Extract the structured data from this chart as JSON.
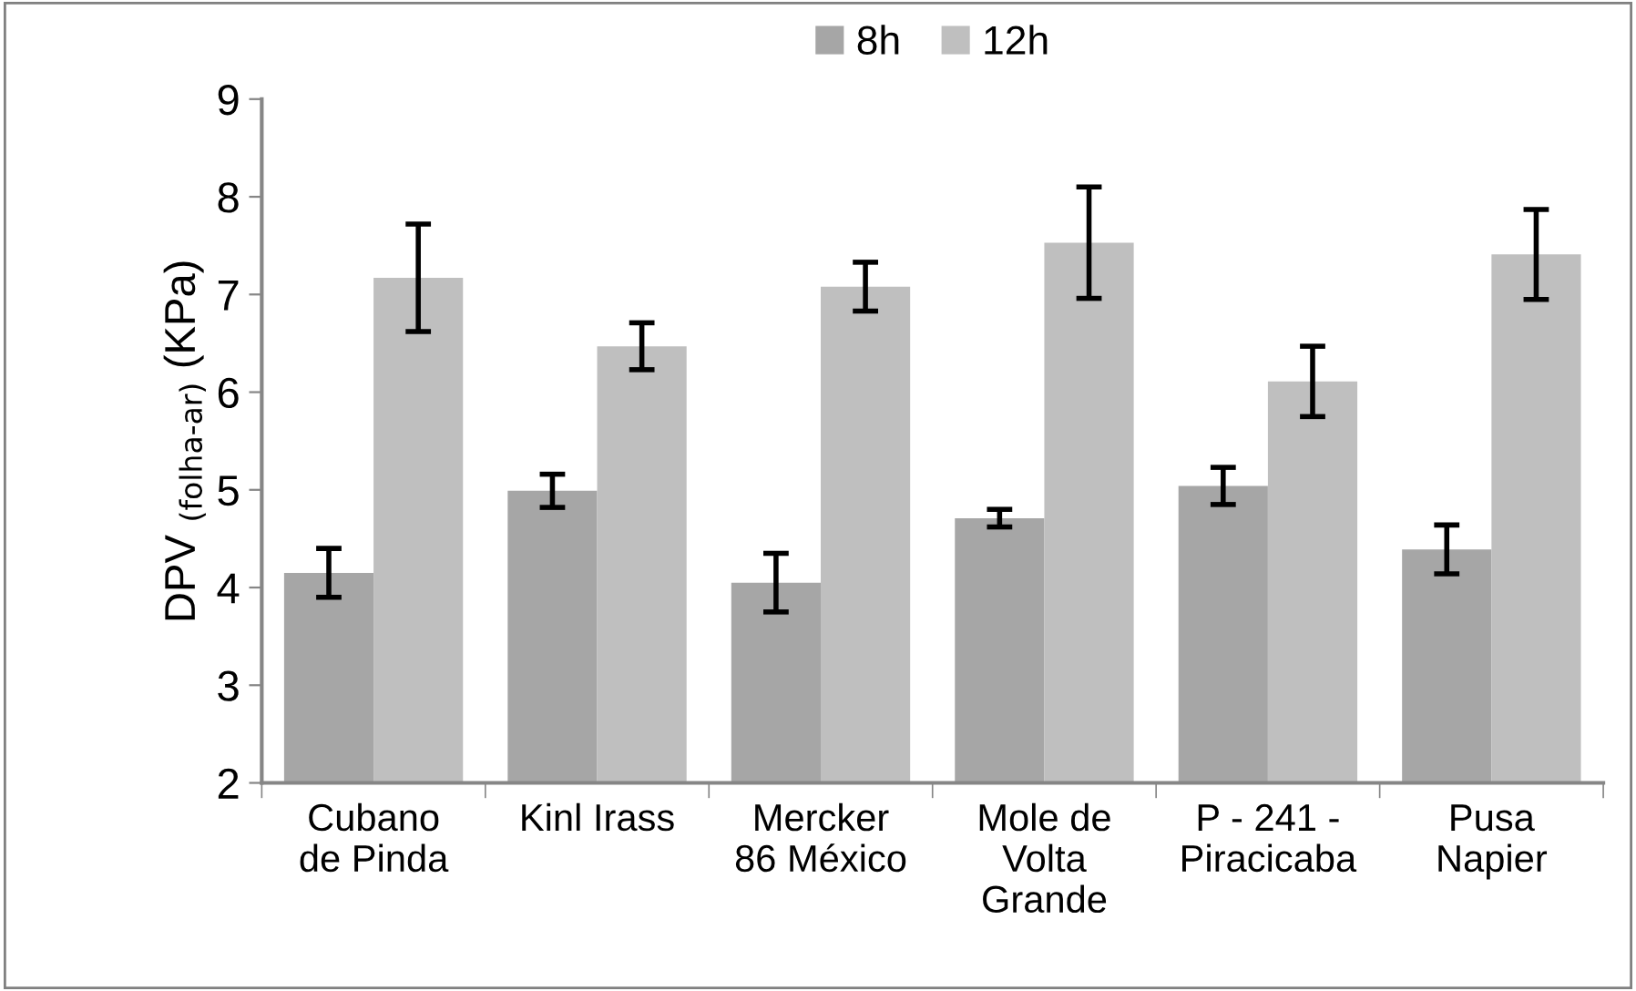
{
  "chart_data": {
    "type": "bar",
    "ylabel": "DPV $_{(folha-ar)}$ (KPa)",
    "categories": [
      "Cubano\nde Pinda",
      "Kinl Irass",
      "Mercker\n86 México",
      "Mole de\nVolta\nGrande",
      "P - 241 -\nPiracicaba",
      "Pusa\nNapier"
    ],
    "series": [
      {
        "name": "8h",
        "color": "#a6a6a6",
        "values": [
          4.15,
          4.99,
          4.05,
          4.71,
          5.04,
          4.39
        ],
        "errors": [
          0.25,
          0.17,
          0.3,
          0.09,
          0.19,
          0.25
        ]
      },
      {
        "name": "12h",
        "color": "#bfbfbf",
        "values": [
          7.17,
          6.47,
          7.08,
          7.53,
          6.11,
          7.41
        ],
        "errors": [
          0.55,
          0.24,
          0.25,
          0.57,
          0.36,
          0.46
        ]
      }
    ],
    "ylim": [
      2,
      9
    ],
    "yticks": [
      2,
      3,
      4,
      5,
      6,
      7,
      8,
      9
    ],
    "grid": false,
    "legend": "top"
  }
}
